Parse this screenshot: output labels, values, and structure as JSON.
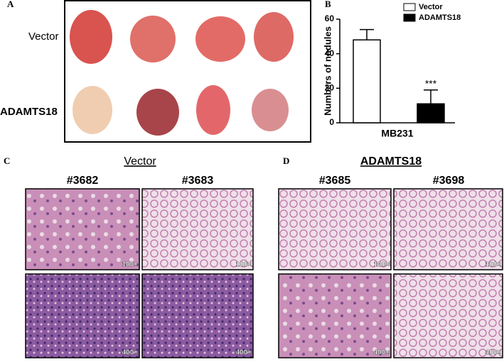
{
  "panel_labels": [
    "A",
    "B",
    "C",
    "D"
  ],
  "panel_a": {
    "rows": [
      "Vector",
      "ADAMTS18"
    ]
  },
  "panel_c": {
    "title": "Vector",
    "samples": [
      "#3682",
      "#3683"
    ]
  },
  "panel_d": {
    "title": "ADAMTS18",
    "samples": [
      "#3685",
      "#3698"
    ]
  },
  "magnifications": [
    "100×",
    "400×"
  ],
  "chart_data": {
    "type": "bar",
    "ylabel": "Numbers of nodules",
    "categories": [
      "MB231"
    ],
    "series": [
      {
        "name": "Vector",
        "color": "#ffffff",
        "values": [
          48
        ],
        "errors": [
          6
        ]
      },
      {
        "name": "ADAMTS18",
        "color": "#000000",
        "values": [
          11
        ],
        "errors": [
          8
        ],
        "annotations": [
          "***"
        ]
      }
    ],
    "ylim": [
      0,
      60
    ],
    "yticks": [
      0,
      20,
      40,
      60
    ],
    "legend": "upper right"
  }
}
